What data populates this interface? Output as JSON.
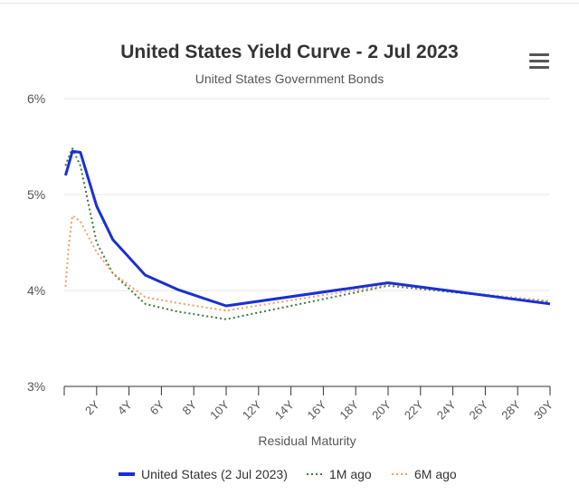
{
  "title": "United States Yield Curve - 2 Jul 2023",
  "subtitle": "United States Government Bonds",
  "menu_icon": "hamburger-menu-icon",
  "chart_data": {
    "type": "line",
    "title": "United States Yield Curve - 2 Jul 2023",
    "subtitle": "United States Government Bonds",
    "xlabel": "Residual Maturity",
    "ylabel": "",
    "x_ticks": [
      "2Y",
      "4Y",
      "6Y",
      "8Y",
      "10Y",
      "12Y",
      "14Y",
      "16Y",
      "18Y",
      "20Y",
      "22Y",
      "24Y",
      "26Y",
      "28Y",
      "30Y"
    ],
    "y_ticks": [
      "3%",
      "4%",
      "5%",
      "6%"
    ],
    "xlim": [
      0,
      30
    ],
    "ylim": [
      3,
      6
    ],
    "grid": "horizontal",
    "legend_position": "bottom",
    "series": [
      {
        "name": "United States (2 Jul 2023)",
        "color": "#1a2fd6",
        "style": "solid",
        "x": [
          0.08,
          0.25,
          0.5,
          1,
          2,
          3,
          5,
          7,
          10,
          20,
          30
        ],
        "y": [
          5.2,
          5.3,
          5.45,
          5.44,
          4.88,
          4.53,
          4.16,
          4.01,
          3.84,
          4.08,
          3.86
        ]
      },
      {
        "name": "1M ago",
        "color": "#3d7a3a",
        "style": "dotted",
        "x": [
          0.08,
          0.25,
          0.5,
          1,
          2,
          3,
          5,
          7,
          10,
          20,
          30
        ],
        "y": [
          5.3,
          5.38,
          5.48,
          5.3,
          4.5,
          4.18,
          3.86,
          3.78,
          3.7,
          4.05,
          3.88
        ]
      },
      {
        "name": "6M ago",
        "color": "#f0a060",
        "style": "dotted",
        "x": [
          0.08,
          0.25,
          0.5,
          1,
          2,
          3,
          5,
          7,
          10,
          20,
          30
        ],
        "y": [
          4.04,
          4.42,
          4.78,
          4.72,
          4.4,
          4.18,
          3.93,
          3.87,
          3.79,
          4.06,
          3.89
        ]
      }
    ]
  }
}
